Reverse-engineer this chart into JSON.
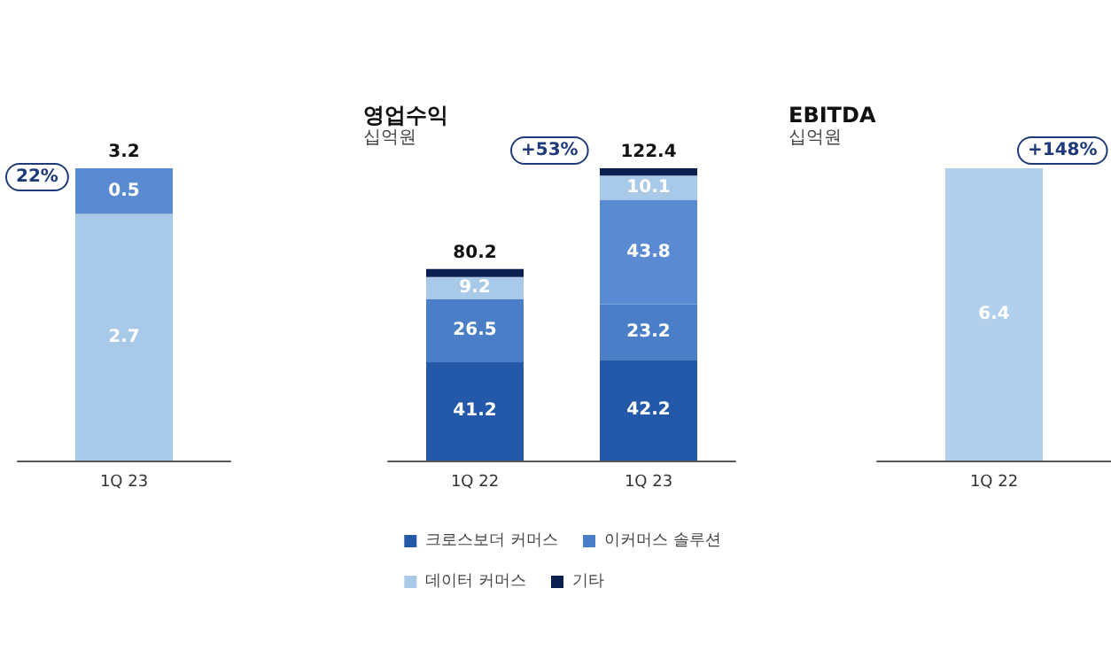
{
  "chart_data": [
    {
      "type": "bar",
      "categories": [
        "1Q 23"
      ],
      "stacked": true,
      "annotations": [
        "22%"
      ],
      "totals": [
        "3.2"
      ],
      "series": [
        {
          "color": "#a9c9e9",
          "values": [
            2.7
          ],
          "value_labels": [
            "2.7"
          ]
        },
        {
          "color": "#5a8bd2",
          "values": [
            0.5
          ],
          "value_labels": [
            "0.5"
          ]
        }
      ]
    },
    {
      "type": "bar",
      "title": "영업수익",
      "subtitle": "십억원",
      "categories": [
        "1Q 22",
        "1Q 23"
      ],
      "stacked": true,
      "legend": "bottom",
      "annotations": [
        "+53%"
      ],
      "totals": [
        "80.2",
        "122.4"
      ],
      "series": [
        {
          "name": "크로스보더 커머스",
          "color": "#2458a8",
          "values": [
            41.2,
            42.2
          ],
          "value_labels": [
            "41.2",
            "42.2"
          ]
        },
        {
          "name": "이커머스 솔루션",
          "color": "#4a7fc8",
          "values": [
            26.5,
            23.2
          ],
          "value_labels": [
            "26.5",
            "23.2"
          ]
        },
        {
          "color": "#5a8bd2",
          "values": [
            null,
            43.8
          ],
          "value_labels": [
            null,
            "43.8"
          ]
        },
        {
          "name": "데이터 커머스",
          "color": "#a9c9e9",
          "values": [
            9.2,
            10.1
          ],
          "value_labels": [
            "9.2",
            "10.1"
          ]
        },
        {
          "name": "기타",
          "color": "#0b1f4f",
          "values": [
            3.3,
            3.1
          ]
        }
      ]
    },
    {
      "type": "bar",
      "title": "EBITDA",
      "subtitle": "십억원",
      "categories": [
        "1Q 22"
      ],
      "annotations": [
        "+148%"
      ],
      "series": [
        {
          "color": "#b2cfec",
          "values": [
            6.4
          ],
          "value_labels": [
            "6.4"
          ]
        }
      ]
    }
  ]
}
